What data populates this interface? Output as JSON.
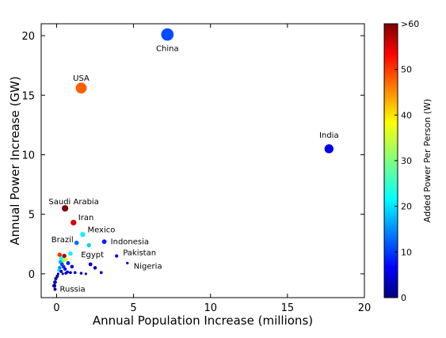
{
  "chart_data": {
    "type": "scatter",
    "title": "",
    "xlabel": "Annual Population Increase (millions)",
    "ylabel": "Annual Power Increase (GW)",
    "xlim": [
      -1,
      20
    ],
    "ylim": [
      -2,
      21
    ],
    "xticks": [
      "0",
      "5",
      "10",
      "15",
      "20"
    ],
    "yticks": [
      "0",
      "5",
      "10",
      "15",
      "20"
    ],
    "grid": false,
    "colorbar": {
      "label": "Added Power Per Person (W)",
      "range": [
        0,
        60
      ],
      "ticks": [
        "0",
        "10",
        "20",
        "30",
        "40",
        "50",
        ">60"
      ],
      "colormap": "jet"
    },
    "labeled_points": [
      {
        "name": "China",
        "x": 7.2,
        "y": 20.1,
        "color_value": 12
      },
      {
        "name": "USA",
        "x": 1.6,
        "y": 15.6,
        "color_value": 47
      },
      {
        "name": "India",
        "x": 17.7,
        "y": 10.5,
        "color_value": 6
      },
      {
        "name": "Saudi Arabia",
        "x": 0.55,
        "y": 5.5,
        "color_value": 60
      },
      {
        "name": "Iran",
        "x": 1.1,
        "y": 4.3,
        "color_value": 55
      },
      {
        "name": "Mexico",
        "x": 1.7,
        "y": 3.3,
        "color_value": 22
      },
      {
        "name": "Brazil",
        "x": 1.3,
        "y": 2.6,
        "color_value": 14
      },
      {
        "name": "Indonesia",
        "x": 3.1,
        "y": 2.7,
        "color_value": 9
      },
      {
        "name": "Egypt",
        "x": 2.1,
        "y": 2.4,
        "color_value": 20
      },
      {
        "name": "Pakistan",
        "x": 3.9,
        "y": 1.5,
        "color_value": 7
      },
      {
        "name": "Nigeria",
        "x": 4.6,
        "y": 0.9,
        "color_value": 4
      },
      {
        "name": "Russia",
        "x": -0.1,
        "y": -1.3,
        "color_value": 2
      }
    ],
    "unlabeled_points": [
      {
        "x": 0.9,
        "y": 1.7,
        "c": 22
      },
      {
        "x": 0.2,
        "y": 1.6,
        "c": 50
      },
      {
        "x": 0.5,
        "y": 1.5,
        "c": 58
      },
      {
        "x": 0.3,
        "y": 1.3,
        "c": 24
      },
      {
        "x": 0.4,
        "y": 1.1,
        "c": 30
      },
      {
        "x": 0.25,
        "y": 1.0,
        "c": 18
      },
      {
        "x": 0.6,
        "y": 1.2,
        "c": 35
      },
      {
        "x": 0.35,
        "y": 0.8,
        "c": 12
      },
      {
        "x": 0.45,
        "y": 0.6,
        "c": 10
      },
      {
        "x": 0.2,
        "y": 0.5,
        "c": 15
      },
      {
        "x": 0.55,
        "y": 0.4,
        "c": 8
      },
      {
        "x": 0.15,
        "y": 0.3,
        "c": 20
      },
      {
        "x": 0.3,
        "y": 0.2,
        "c": 6
      },
      {
        "x": 0.7,
        "y": 0.15,
        "c": 5
      },
      {
        "x": 0.9,
        "y": 0.1,
        "c": 4
      },
      {
        "x": 1.0,
        "y": 0.6,
        "c": 5
      },
      {
        "x": 2.2,
        "y": 0.8,
        "c": 4
      },
      {
        "x": 2.5,
        "y": 0.5,
        "c": 3
      },
      {
        "x": 1.6,
        "y": 0.05,
        "c": 3
      },
      {
        "x": 1.9,
        "y": 0.0,
        "c": 2
      },
      {
        "x": 2.9,
        "y": 0.1,
        "c": 3
      },
      {
        "x": 0.1,
        "y": 0.0,
        "c": 3
      },
      {
        "x": 0.05,
        "y": -0.2,
        "c": 2
      },
      {
        "x": -0.05,
        "y": -0.4,
        "c": 2
      },
      {
        "x": -0.1,
        "y": -0.7,
        "c": 3
      },
      {
        "x": -0.15,
        "y": -1.0,
        "c": 2
      },
      {
        "x": 0.6,
        "y": 0.05,
        "c": 4
      },
      {
        "x": 1.2,
        "y": 0.1,
        "c": 5
      },
      {
        "x": 0.4,
        "y": 0.0,
        "c": 4
      },
      {
        "x": 0.75,
        "y": 0.9,
        "c": 9
      }
    ]
  }
}
